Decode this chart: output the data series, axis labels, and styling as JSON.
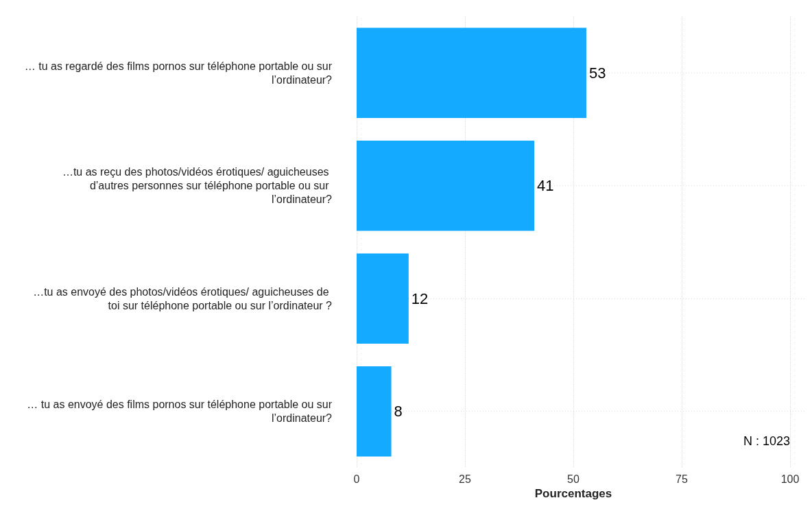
{
  "chart_data": {
    "type": "bar",
    "orientation": "horizontal",
    "xlabel": "Pourcentages",
    "categories": [
      "… tu as regardé des films pornos sur téléphone portable ou sur l’ordinateur?",
      "…tu as reçu des photos/vidéos érotiques/ aguicheuses d’autres personnes sur téléphone portable ou sur l’ordinateur?",
      "…tu as envoyé des photos/vidéos érotiques/ aguicheuses de toi sur téléphone portable ou sur l’ordinateur ?",
      "… tu as envoyé des films pornos sur téléphone portable ou sur l’ordinateur?"
    ],
    "values": [
      53,
      41,
      12,
      8
    ],
    "color": "#13aaff",
    "xlim": [
      0,
      100
    ],
    "xticks": [
      0,
      25,
      50,
      75,
      100
    ],
    "grid": true,
    "data_labels": true,
    "annotations": [
      "N : 1023"
    ]
  }
}
